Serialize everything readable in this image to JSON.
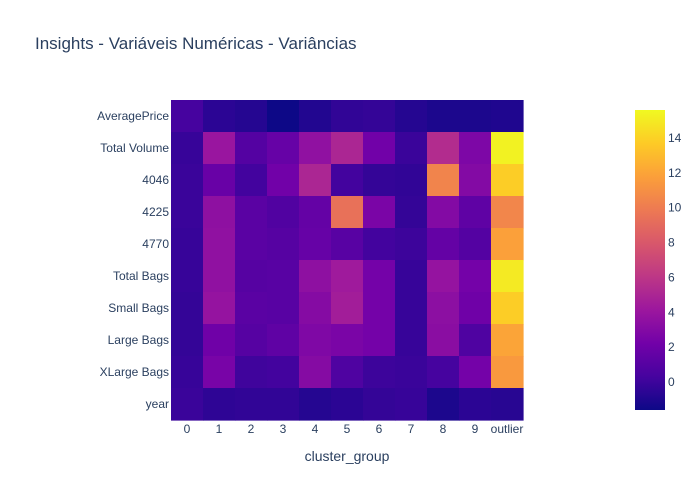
{
  "chart_data": {
    "type": "heatmap",
    "title": "Insights - Variáveis Numéricas - Variâncias",
    "xlabel": "cluster_group",
    "ylabel": "",
    "x": [
      "0",
      "1",
      "2",
      "3",
      "4",
      "5",
      "6",
      "7",
      "8",
      "9",
      "outlier"
    ],
    "y": [
      "AveragePrice",
      "Total Volume",
      "4046",
      "4225",
      "4770",
      "Total Bags",
      "Small Bags",
      "Large Bags",
      "XLarge Bags",
      "year"
    ],
    "z": [
      [
        0.3,
        -0.6,
        -0.8,
        -1.6,
        -0.9,
        -0.4,
        -0.3,
        -0.8,
        -1.1,
        -1.1,
        -1.0
      ],
      [
        -0.2,
        4.0,
        0.9,
        1.7,
        3.6,
        5.0,
        2.2,
        -0.1,
        5.4,
        2.7,
        15.3
      ],
      [
        -0.1,
        1.8,
        0.2,
        2.2,
        5.0,
        0.2,
        -0.3,
        -0.4,
        10.4,
        3.0,
        13.8
      ],
      [
        -0.1,
        3.5,
        1.2,
        0.8,
        1.6,
        9.4,
        2.6,
        -0.3,
        3.0,
        1.4,
        10.5
      ],
      [
        -0.2,
        3.6,
        1.2,
        1.0,
        1.7,
        1.1,
        0.2,
        0.0,
        1.6,
        0.9,
        11.8
      ],
      [
        -0.2,
        3.6,
        1.0,
        1.1,
        3.5,
        4.3,
        2.3,
        -0.2,
        3.8,
        2.3,
        15.0
      ],
      [
        -0.3,
        3.8,
        1.2,
        1.1,
        3.1,
        4.5,
        2.3,
        -0.2,
        3.4,
        2.1,
        13.8
      ],
      [
        -0.3,
        2.1,
        1.0,
        1.4,
        2.8,
        2.6,
        2.3,
        -0.2,
        3.3,
        0.7,
        12.0
      ],
      [
        -0.2,
        2.5,
        0.1,
        0.2,
        3.1,
        0.7,
        0.0,
        -0.1,
        0.3,
        2.3,
        11.5
      ],
      [
        -0.1,
        -0.5,
        -0.4,
        -0.4,
        -0.8,
        -0.6,
        -0.3,
        -0.2,
        -1.1,
        -0.6,
        -0.7
      ]
    ],
    "zmin": -1.6,
    "zmax": 15.6,
    "colorscale": "plasma",
    "colorbar_ticks": [
      0,
      2,
      4,
      6,
      8,
      10,
      12,
      14
    ],
    "grid": false,
    "legend": "colorbar-right"
  }
}
